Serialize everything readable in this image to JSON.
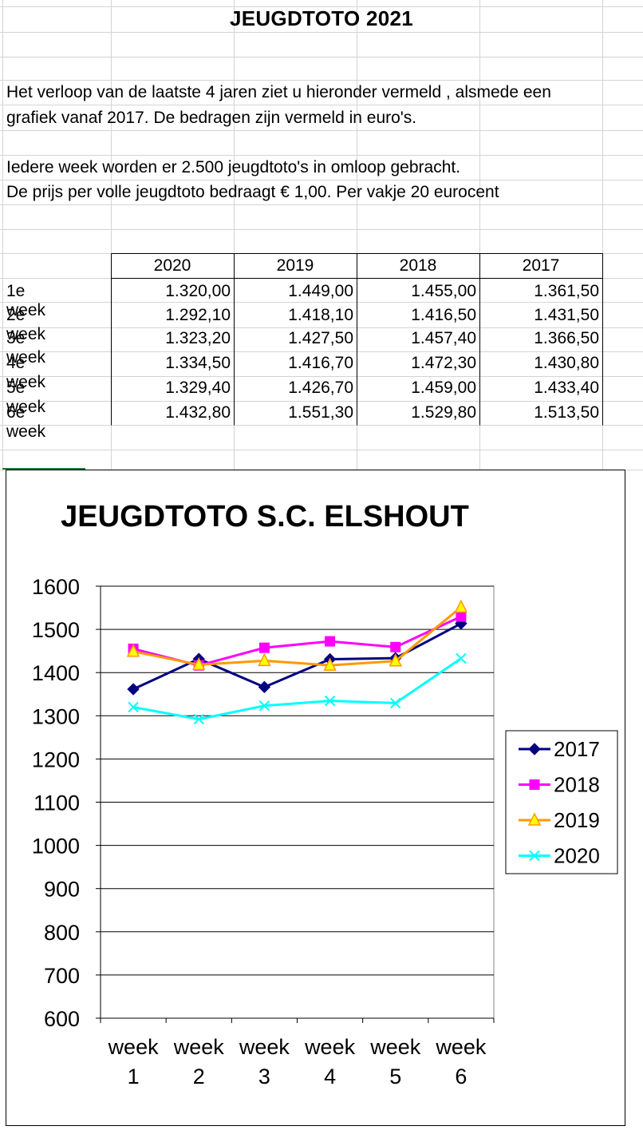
{
  "page": {
    "title": "JEUGDTOTO 2021",
    "intro_line1": "Het verloop van de laatste 4 jaren ziet u hieronder vermeld , alsmede een",
    "intro_line2": "grafiek vanaf 2017. De bedragen zijn vermeld in euro's.",
    "intro_line3": "Iedere week worden er 2.500 jeugdtoto's in omloop gebracht.",
    "intro_line4": "De prijs per volle jeugdtoto bedraagt € 1,00. Per vakje 20 eurocent"
  },
  "table": {
    "headers": [
      "2020",
      "2019",
      "2018",
      "2017"
    ],
    "rows": [
      {
        "label": "1e week",
        "values": [
          "1.320,00",
          "1.449,00",
          "1.455,00",
          "1.361,50"
        ]
      },
      {
        "label": "2e week",
        "values": [
          "1.292,10",
          "1.418,10",
          "1.416,50",
          "1.431,50"
        ]
      },
      {
        "label": "3e week",
        "values": [
          "1.323,20",
          "1.427,50",
          "1.457,40",
          "1.366,50"
        ]
      },
      {
        "label": "4e week",
        "values": [
          "1.334,50",
          "1.416,70",
          "1.472,30",
          "1.430,80"
        ]
      },
      {
        "label": "5e week",
        "values": [
          "1.329,40",
          "1.426,70",
          "1.459,00",
          "1.433,40"
        ]
      },
      {
        "label": "6e week",
        "values": [
          "1.432,80",
          "1.551,30",
          "1.529,80",
          "1.513,50"
        ]
      }
    ]
  },
  "chart_data": {
    "type": "line",
    "title": "JEUGDTOTO S.C. ELSHOUT",
    "categories": [
      "week 1",
      "week 2",
      "week 3",
      "week 4",
      "week 5",
      "week 6"
    ],
    "category_lines": [
      [
        "week",
        "1"
      ],
      [
        "week",
        "2"
      ],
      [
        "week",
        "3"
      ],
      [
        "week",
        "4"
      ],
      [
        "week",
        "5"
      ],
      [
        "week",
        "6"
      ]
    ],
    "ylim": [
      600,
      1600
    ],
    "yticks": [
      600,
      700,
      800,
      900,
      1000,
      1100,
      1200,
      1300,
      1400,
      1500,
      1600
    ],
    "grid": true,
    "legend_position": "right",
    "series": [
      {
        "name": "2017",
        "color": "#000080",
        "marker": "diamond",
        "values": [
          1361.5,
          1431.5,
          1366.5,
          1430.8,
          1433.4,
          1513.5
        ]
      },
      {
        "name": "2018",
        "color": "#ff00ff",
        "marker": "square",
        "values": [
          1455.0,
          1416.5,
          1457.4,
          1472.3,
          1459.0,
          1529.8
        ]
      },
      {
        "name": "2019",
        "color": "#ff9900",
        "marker": "triangle",
        "values": [
          1449.0,
          1418.1,
          1427.5,
          1416.7,
          1426.7,
          1551.3
        ]
      },
      {
        "name": "2020",
        "color": "#00ffff",
        "marker": "cross",
        "values": [
          1320.0,
          1292.1,
          1323.2,
          1334.5,
          1329.4,
          1432.8
        ]
      }
    ]
  }
}
